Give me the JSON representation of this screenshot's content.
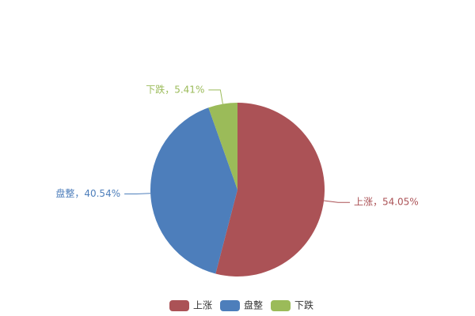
{
  "chart_data": {
    "type": "pie",
    "categories": [
      "上涨",
      "盘整",
      "下跌"
    ],
    "values": [
      54.05,
      40.54,
      5.41
    ],
    "value_labels": [
      "上涨，54.05%",
      "盘整，40.54%",
      "下跌，5.41%"
    ],
    "colors": [
      "#ab5256",
      "#4d7ebb",
      "#9bbb59"
    ],
    "legend": "bottom"
  }
}
